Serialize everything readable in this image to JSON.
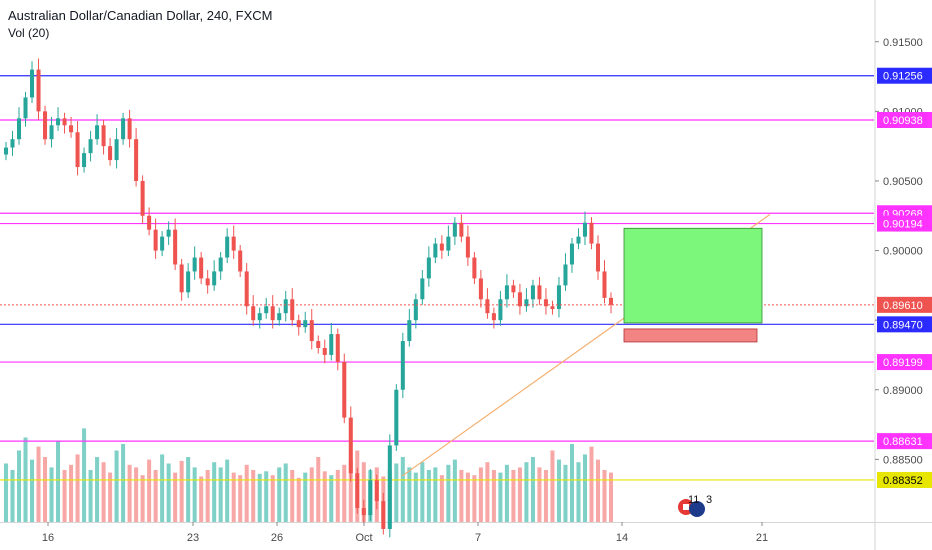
{
  "header": {
    "symbol_title": "Australian Dollar/Canadian Dollar, 240, FXCM",
    "volume_label": "Vol (20)"
  },
  "colors": {
    "up": "#26a69a",
    "down": "#ef5350",
    "vol_up": "#7fd0c7",
    "vol_down": "#f7a8a6",
    "blue_line": "#2b2bff",
    "magenta_line": "#ff33ff",
    "yellow_line": "#e6e600",
    "profit_zone": "#7cf77c",
    "loss_zone": "#f28484",
    "trend_line": "#f5b070",
    "current_price": "#ef5350"
  },
  "chart_data": {
    "type": "candlestick",
    "y_range": [
      0.8805,
      0.918
    ],
    "y_ticks": [
      "0.91500",
      "0.91000",
      "0.90500",
      "0.90000",
      "0.89500",
      "0.89000",
      "0.88500"
    ],
    "x_ticks": [
      "16",
      "23",
      "26",
      "Oct",
      "7",
      "14",
      "21"
    ],
    "current_price": "0.89610",
    "horizontal_levels": [
      {
        "label": "0.91256",
        "value": 0.91256,
        "color": "blue"
      },
      {
        "label": "0.90938",
        "value": 0.90938,
        "color": "magenta"
      },
      {
        "label": "0.90268",
        "value": 0.90268,
        "color": "magenta"
      },
      {
        "label": "0.90194",
        "value": 0.90194,
        "color": "magenta"
      },
      {
        "label": "0.89470",
        "value": 0.8947,
        "color": "blue"
      },
      {
        "label": "0.89199",
        "value": 0.89199,
        "color": "magenta"
      },
      {
        "label": "0.88631",
        "value": 0.88631,
        "color": "magenta"
      },
      {
        "label": "0.88352",
        "value": 0.88352,
        "color": "yellow"
      }
    ],
    "position_tool": {
      "entry": 0.8948,
      "target": 0.9016,
      "stop": 0.8932
    },
    "close_path": [
      0.9074,
      0.908,
      0.9095,
      0.911,
      0.913,
      0.91,
      0.908,
      0.909,
      0.9095,
      0.909,
      0.9085,
      0.906,
      0.907,
      0.908,
      0.909,
      0.9075,
      0.9065,
      0.908,
      0.9095,
      0.908,
      0.905,
      0.9025,
      0.9015,
      0.9,
      0.901,
      0.9015,
      0.899,
      0.897,
      0.8985,
      0.8995,
      0.898,
      0.8975,
      0.8985,
      0.8995,
      0.901,
      0.9,
      0.8985,
      0.896,
      0.895,
      0.8955,
      0.896,
      0.895,
      0.8955,
      0.8965,
      0.895,
      0.8945,
      0.895,
      0.8935,
      0.893,
      0.8925,
      0.894,
      0.892,
      0.888,
      0.884,
      0.8815,
      0.881,
      0.8835,
      0.882,
      0.88,
      0.886,
      0.89,
      0.8935,
      0.895,
      0.8965,
      0.898,
      0.8995,
      0.9005,
      0.9,
      0.901,
      0.902,
      0.901,
      0.8995,
      0.898,
      0.8965,
      0.8955,
      0.895,
      0.8965,
      0.8975,
      0.897,
      0.896,
      0.8965,
      0.8975,
      0.8965,
      0.896,
      0.8958,
      0.8975,
      0.899,
      0.9005,
      0.901,
      0.902,
      0.9005,
      0.8985,
      0.8966,
      0.8961
    ],
    "volume": [
      0.45,
      0.4,
      0.55,
      0.65,
      0.48,
      0.58,
      0.5,
      0.42,
      0.62,
      0.4,
      0.44,
      0.52,
      0.72,
      0.4,
      0.5,
      0.46,
      0.38,
      0.55,
      0.6,
      0.44,
      0.42,
      0.36,
      0.48,
      0.4,
      0.52,
      0.45,
      0.38,
      0.47,
      0.5,
      0.42,
      0.35,
      0.4,
      0.46,
      0.42,
      0.48,
      0.38,
      0.36,
      0.44,
      0.4,
      0.37,
      0.39,
      0.36,
      0.42,
      0.45,
      0.4,
      0.34,
      0.38,
      0.42,
      0.5,
      0.39,
      0.36,
      0.4,
      0.44,
      0.48,
      0.55,
      0.46,
      0.4,
      0.42,
      0.35,
      0.4,
      0.45,
      0.5,
      0.42,
      0.38,
      0.46,
      0.4,
      0.42,
      0.36,
      0.44,
      0.48,
      0.4,
      0.38,
      0.36,
      0.42,
      0.46,
      0.4,
      0.38,
      0.44,
      0.4,
      0.42,
      0.46,
      0.5,
      0.42,
      0.4,
      0.55,
      0.48,
      0.44,
      0.6,
      0.46,
      0.52,
      0.58,
      0.48,
      0.4,
      0.38
    ]
  },
  "badge": {
    "label": "11",
    "sub": "3"
  }
}
